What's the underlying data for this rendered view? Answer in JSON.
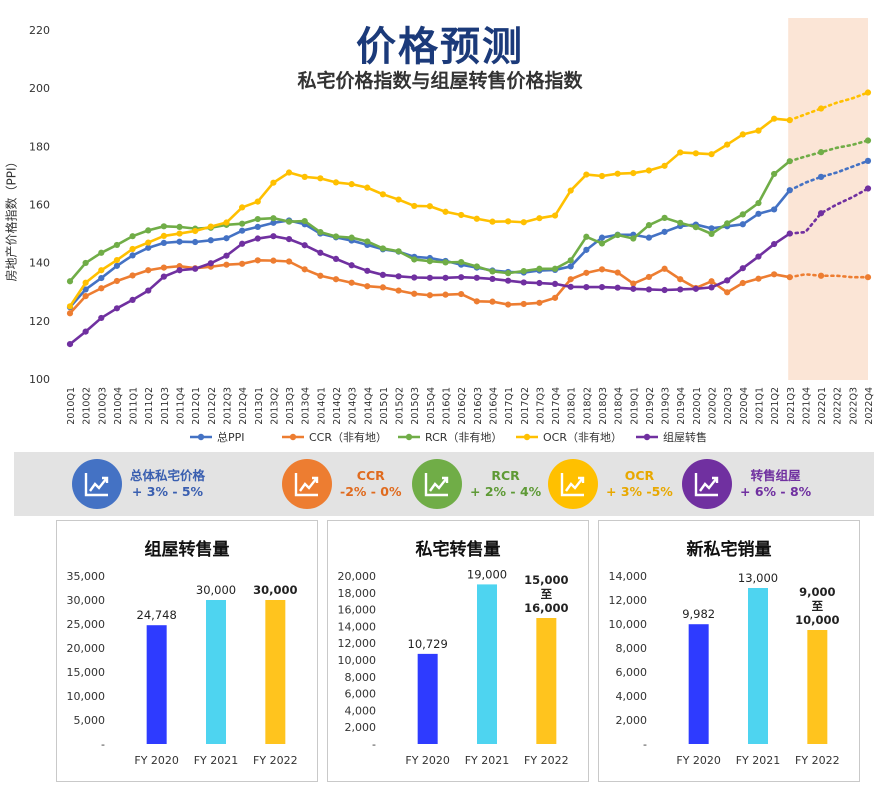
{
  "title": "价格预测",
  "subtitle": "私宅价格指数与组屋转售价格指数",
  "colors": {
    "ppi": "#4472c4",
    "ccr": "#ed7d31",
    "rcr": "#70ad47",
    "ocr": "#ffc000",
    "hdb": "#7030a0",
    "forecast_band": "#fbe5d6"
  },
  "chart_data": [
    {
      "type": "line",
      "title": "私宅价格指数与组屋转售价格指数",
      "ylabel": "房地产价格指数（PPI）",
      "ylim": [
        100,
        220
      ],
      "yticks": [
        100,
        120,
        140,
        160,
        180,
        200,
        220
      ],
      "forecast_start": "2021Q3",
      "x": [
        "2010Q1",
        "2010Q2",
        "2010Q3",
        "2010Q4",
        "2011Q1",
        "2011Q2",
        "2011Q3",
        "2011Q4",
        "2012Q1",
        "2012Q2",
        "2012Q3",
        "2012Q4",
        "2013Q1",
        "2013Q2",
        "2013Q3",
        "2013Q4",
        "2014Q1",
        "2014Q2",
        "2014Q3",
        "2014Q4",
        "2015Q1",
        "2015Q2",
        "2015Q3",
        "2015Q4",
        "2016Q1",
        "2016Q2",
        "2016Q3",
        "2016Q4",
        "2017Q1",
        "2017Q2",
        "2017Q3",
        "2017Q4",
        "2018Q1",
        "2018Q2",
        "2018Q3",
        "2018Q4",
        "2019Q1",
        "2019Q2",
        "2019Q3",
        "2019Q4",
        "2020Q1",
        "2020Q2",
        "2020Q3",
        "2020Q4",
        "2021Q1",
        "2021Q2",
        "2021Q3",
        "2021Q4",
        "2022Q1",
        "2022Q2",
        "2022Q3",
        "2022Q4"
      ],
      "series": [
        {
          "name": "总PPI",
          "key": "ppi",
          "values": [
            124.7,
            130.8,
            134.7,
            138.9,
            142.5,
            145.1,
            146.8,
            147.2,
            147.1,
            147.7,
            148.4,
            151.0,
            152.3,
            153.7,
            154.5,
            153.2,
            150.0,
            148.7,
            147.6,
            146.1,
            144.6,
            143.8,
            142.0,
            141.6,
            140.6,
            139.3,
            138.3,
            137.3,
            136.8,
            136.6,
            137.3,
            137.5,
            138.7,
            144.4,
            148.6,
            149.6,
            149.6,
            148.6,
            150.6,
            152.6,
            153.1,
            151.8,
            152.5,
            153.2,
            156.8,
            158.3,
            164.9,
            167.5,
            169.5,
            171.0,
            173.0,
            175.0
          ]
        },
        {
          "name": "CCR（非有地）",
          "key": "ccr",
          "values": [
            122.6,
            128.5,
            131.2,
            133.7,
            135.6,
            137.4,
            138.3,
            138.8,
            138.1,
            138.6,
            139.3,
            139.6,
            140.8,
            140.7,
            140.4,
            137.7,
            135.5,
            134.3,
            133.1,
            131.9,
            131.5,
            130.4,
            129.3,
            128.8,
            129.0,
            129.2,
            126.7,
            126.6,
            125.6,
            125.8,
            126.2,
            127.9,
            134.3,
            136.5,
            137.7,
            136.6,
            132.8,
            135.1,
            137.9,
            134.3,
            131.3,
            133.6,
            129.8,
            133.0,
            134.5,
            136.0,
            135.0,
            136.0,
            135.5,
            135.5,
            135.0,
            135.0
          ]
        },
        {
          "name": "RCR（非有地）",
          "key": "rcr",
          "values": [
            133.6,
            139.9,
            143.4,
            146.1,
            149.1,
            151.1,
            152.5,
            152.3,
            151.7,
            152.0,
            153.0,
            153.4,
            155.0,
            155.3,
            154.1,
            154.3,
            150.5,
            149.0,
            148.6,
            147.3,
            144.9,
            143.9,
            141.1,
            140.5,
            140.1,
            140.2,
            138.7,
            137.0,
            136.4,
            137.1,
            137.9,
            137.9,
            140.8,
            148.9,
            146.6,
            149.5,
            148.3,
            152.9,
            155.4,
            153.7,
            152.2,
            149.9,
            153.5,
            156.6,
            160.5,
            170.5,
            174.9,
            176.5,
            178.0,
            179.5,
            180.5,
            182.0
          ]
        },
        {
          "name": "OCR（非有地）",
          "key": "ocr",
          "values": [
            125.0,
            133.1,
            137.4,
            140.9,
            144.7,
            146.9,
            149.2,
            150.0,
            150.9,
            152.4,
            153.8,
            159.0,
            161.0,
            167.5,
            171.0,
            169.5,
            169.0,
            167.6,
            167.0,
            165.8,
            163.5,
            161.7,
            159.5,
            159.4,
            157.5,
            156.4,
            155.1,
            154.1,
            154.2,
            153.9,
            155.3,
            156.2,
            164.8,
            170.3,
            169.8,
            170.6,
            170.8,
            171.7,
            173.3,
            177.9,
            177.6,
            177.3,
            180.6,
            184.1,
            185.4,
            189.5,
            189.0,
            191.0,
            193.0,
            195.0,
            196.5,
            198.5
          ]
        },
        {
          "name": "组屋转售",
          "key": "hdb",
          "values": [
            112.0,
            116.3,
            121.0,
            124.3,
            127.2,
            130.4,
            135.2,
            137.4,
            137.9,
            139.8,
            142.4,
            146.5,
            148.3,
            149.1,
            148.1,
            146.0,
            143.4,
            141.3,
            139.1,
            137.2,
            135.8,
            135.3,
            134.9,
            134.8,
            134.8,
            135.0,
            134.8,
            134.4,
            133.8,
            133.2,
            133.0,
            132.7,
            131.7,
            131.6,
            131.6,
            131.4,
            131.0,
            130.8,
            130.6,
            130.8,
            131.0,
            131.5,
            133.9,
            138.1,
            142.1,
            146.4,
            150.0,
            150.5,
            157.0,
            160.0,
            162.5,
            165.5
          ]
        }
      ]
    },
    {
      "type": "bar",
      "title": "组屋转售量",
      "categories": [
        "FY 2020",
        "FY 2021",
        "FY 2022"
      ],
      "values": [
        24748,
        30000,
        30000
      ],
      "labels": [
        [
          "24,748"
        ],
        [
          "30,000"
        ],
        [
          "30,000"
        ]
      ],
      "label_bold": [
        false,
        false,
        true
      ],
      "ylim": [
        0,
        35000
      ],
      "yticks": [
        "-",
        "5,000",
        "10,000",
        "15,000",
        "20,000",
        "25,000",
        "30,000",
        "35,000"
      ],
      "colors": [
        "#2e3bff",
        "#4ed4f0",
        "#ffc41e"
      ]
    },
    {
      "type": "bar",
      "title": "私宅转售量",
      "categories": [
        "FY 2020",
        "FY 2021",
        "FY 2022"
      ],
      "values": [
        10729,
        19000,
        15000
      ],
      "labels": [
        [
          "10,729"
        ],
        [
          "19,000"
        ],
        [
          "15,000",
          "至",
          "16,000"
        ]
      ],
      "label_bold": [
        false,
        false,
        true
      ],
      "ylim": [
        0,
        20000
      ],
      "yticks": [
        "-",
        "2,000",
        "4,000",
        "6,000",
        "8,000",
        "10,000",
        "12,000",
        "14,000",
        "16,000",
        "18,000",
        "20,000"
      ],
      "colors": [
        "#2e3bff",
        "#4ed4f0",
        "#ffc41e"
      ]
    },
    {
      "type": "bar",
      "title": "新私宅销量",
      "categories": [
        "FY 2020",
        "FY 2021",
        "FY 2022"
      ],
      "values": [
        9982,
        13000,
        9500
      ],
      "labels": [
        [
          "9,982"
        ],
        [
          "13,000"
        ],
        [
          "9,000",
          "至",
          "10,000"
        ]
      ],
      "label_bold": [
        false,
        false,
        true
      ],
      "ylim": [
        0,
        14000
      ],
      "yticks": [
        "-",
        "2,000",
        "4,000",
        "6,000",
        "8,000",
        "10,000",
        "12,000",
        "14,000"
      ],
      "colors": [
        "#2e3bff",
        "#4ed4f0",
        "#ffc41e"
      ]
    }
  ],
  "forecast_badges": [
    {
      "name": "总体私宅价格",
      "range": "+ 3% - 5%",
      "color": "#4472c4",
      "text_color": "#3a5fb0"
    },
    {
      "name": "CCR",
      "range": "-2% - 0%",
      "color": "#ed7d31",
      "text_color": "#e06b1f"
    },
    {
      "name": "RCR",
      "range": "+ 2% - 4%",
      "color": "#70ad47",
      "text_color": "#5e9a36"
    },
    {
      "name": "OCR",
      "range": "+ 3% -5%",
      "color": "#ffc000",
      "text_color": "#e8a800"
    },
    {
      "name": "转售组屋",
      "range": "+ 6% - 8%",
      "color": "#7030a0",
      "text_color": "#7030a0"
    }
  ]
}
